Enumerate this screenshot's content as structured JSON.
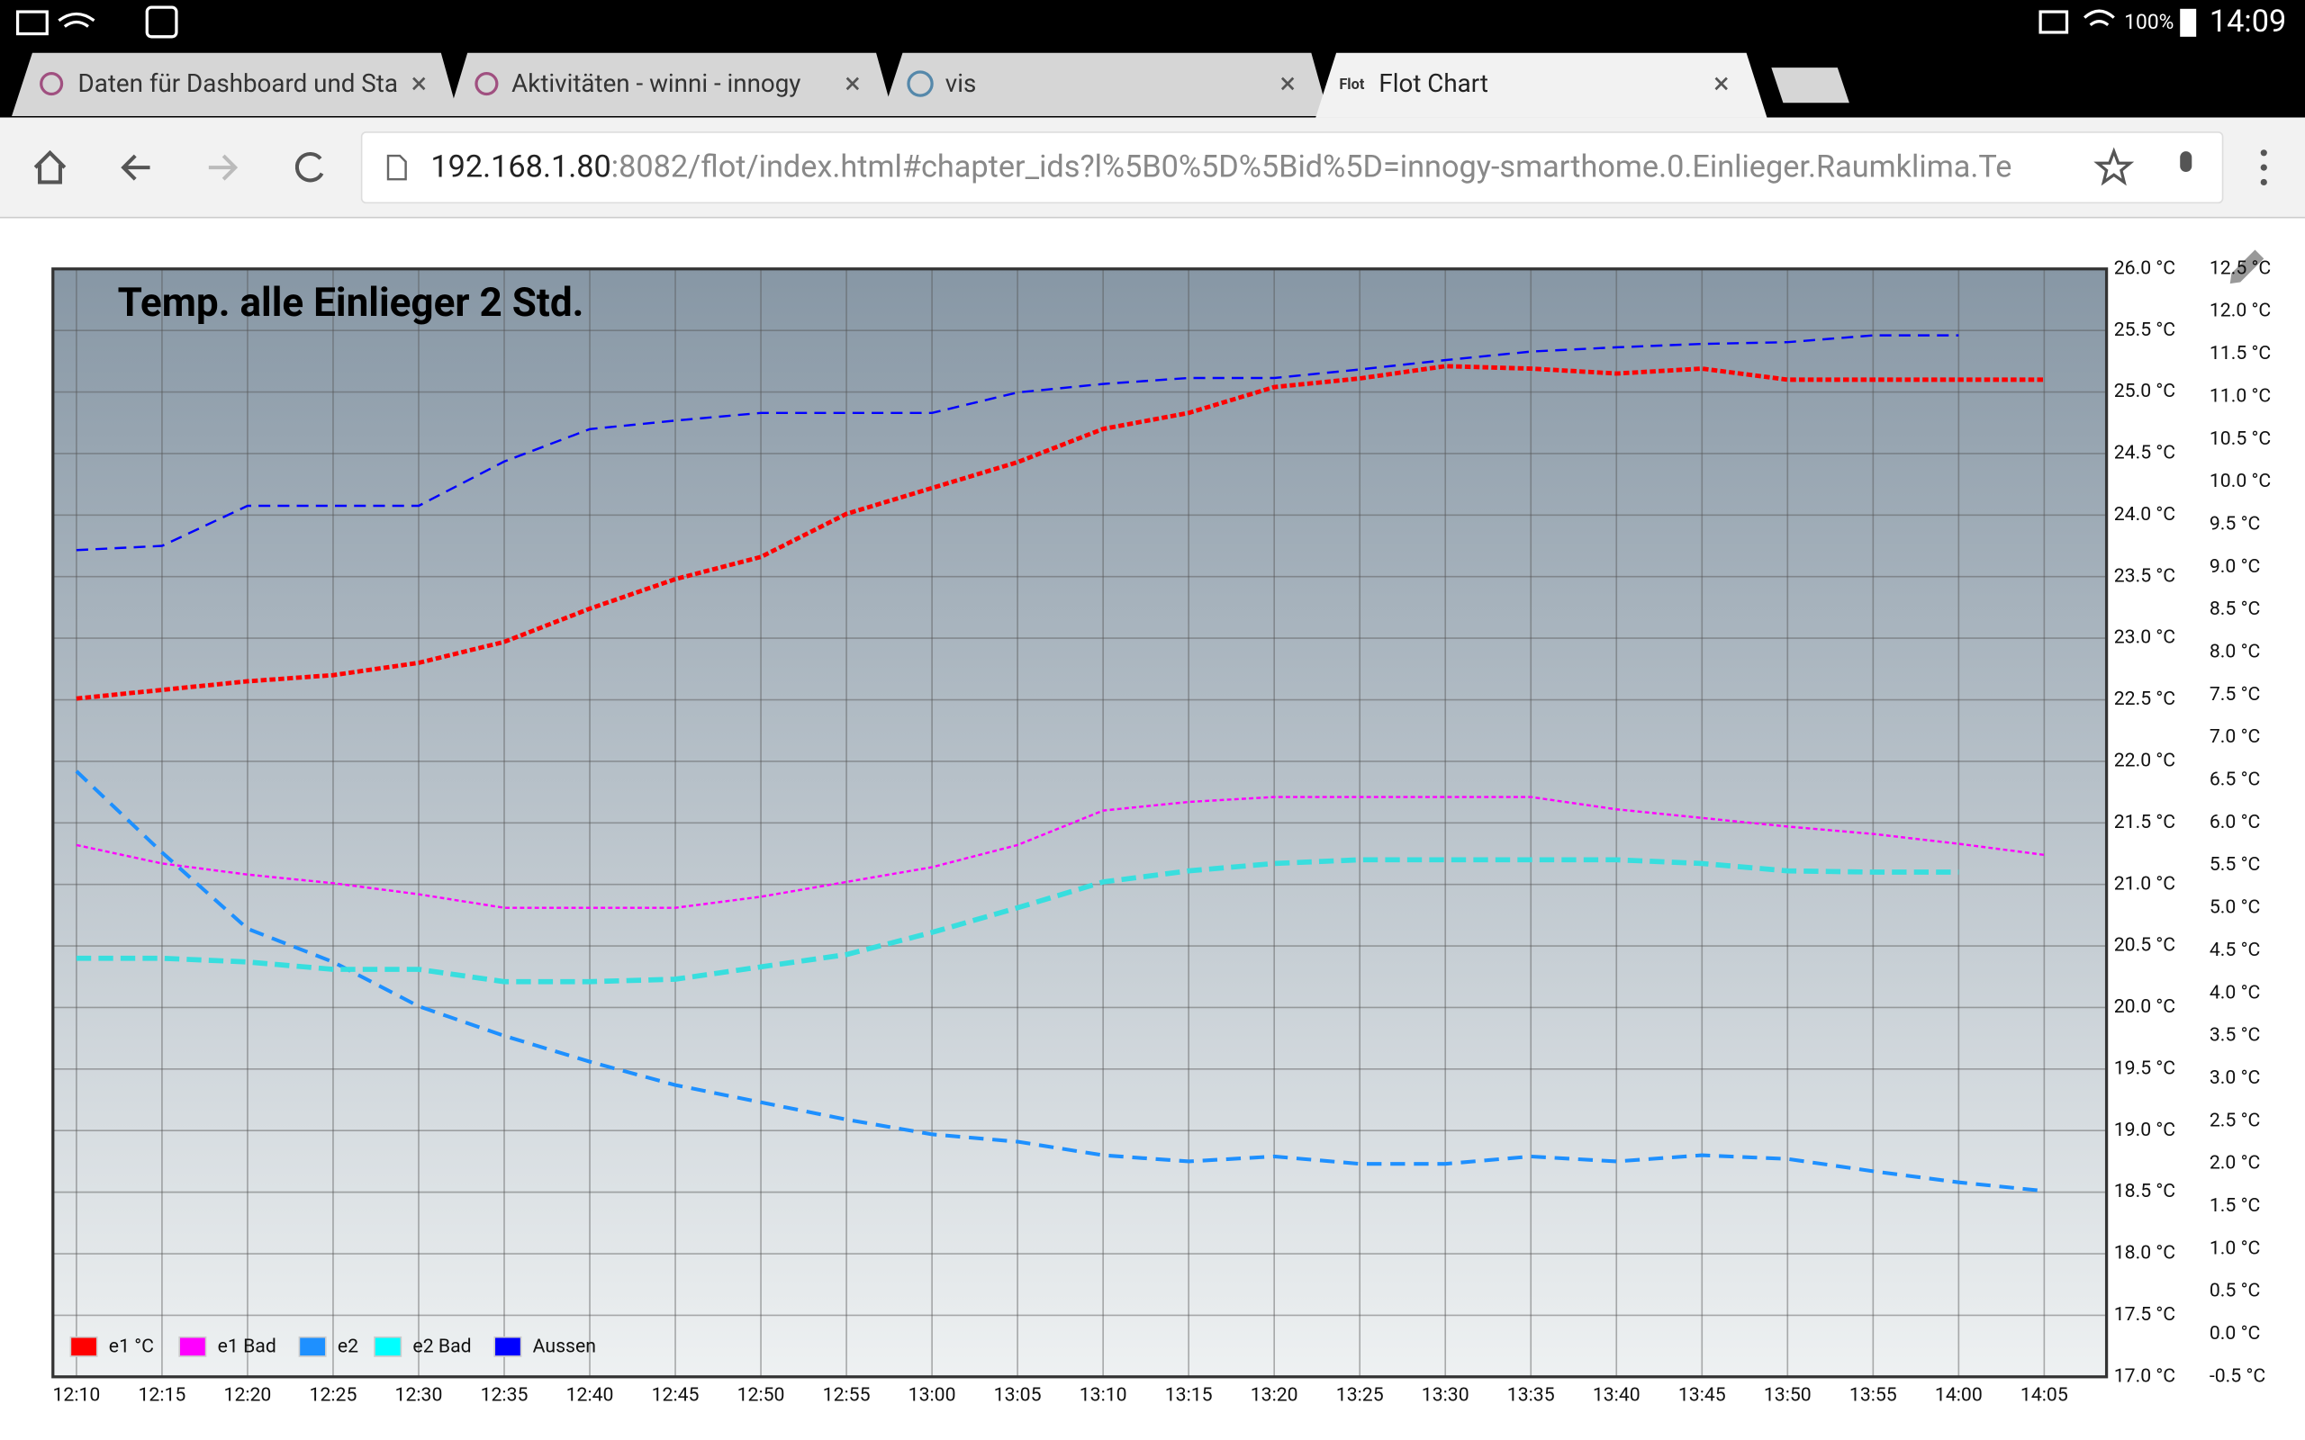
{
  "status_bar": {
    "battery": "100%",
    "time": "14:09"
  },
  "tabs": [
    {
      "title": "Daten für Dashboard und Sta"
    },
    {
      "title": "Aktivitäten - winni - innogy"
    },
    {
      "title": "vis"
    },
    {
      "favicon": "Flot",
      "title": "Flot Chart"
    }
  ],
  "address_bar": {
    "host": "192.168.1.80",
    "path": ":8082/flot/index.html#chapter_ids?l%5B0%5D%5Bid%5D=innogy-smarthome.0.Einlieger.Raumklima.Te"
  },
  "chart_data": {
    "type": "line",
    "title": "Temp. alle Einlieger 2 Std.",
    "categories": [
      "12:10",
      "12:15",
      "12:20",
      "12:25",
      "12:30",
      "12:35",
      "12:40",
      "12:45",
      "12:50",
      "12:55",
      "13:00",
      "13:05",
      "13:10",
      "13:15",
      "13:20",
      "13:25",
      "13:30",
      "13:35",
      "13:40",
      "13:45",
      "13:50",
      "13:55",
      "14:00",
      "14:05"
    ],
    "series": [
      {
        "name": "e1 °C",
        "color": "#ff0000",
        "values": [
          22.51,
          22.58,
          22.65,
          22.7,
          22.8,
          22.97,
          23.24,
          23.48,
          23.66,
          24.01,
          24.22,
          24.43,
          24.7,
          24.83,
          25.04,
          25.11,
          25.21,
          25.19,
          25.15,
          25.19,
          25.1,
          25.1,
          25.1,
          25.1
        ]
      },
      {
        "name": "e1 Bad",
        "color": "#ff00ff",
        "values": [
          21.32,
          21.17,
          21.08,
          21.01,
          20.92,
          20.81,
          20.81,
          20.81,
          20.9,
          21.02,
          21.14,
          21.32,
          21.6,
          21.67,
          21.71,
          21.71,
          21.71,
          21.71,
          21.61,
          21.54,
          21.47,
          21.41,
          21.33,
          21.24
        ]
      },
      {
        "name": "e2",
        "color": "#1e90ff",
        "values": [
          21.92,
          21.26,
          20.64,
          20.37,
          20.01,
          19.77,
          19.56,
          19.37,
          19.23,
          19.09,
          18.97,
          18.91,
          18.8,
          18.75,
          18.79,
          18.73,
          18.73,
          18.79,
          18.75,
          18.8,
          18.77,
          18.67,
          18.58,
          18.51
        ]
      },
      {
        "name": "e2 Bad",
        "color": "#00ffff",
        "values": [
          20.4,
          20.4,
          20.37,
          20.31,
          20.31,
          20.21,
          20.21,
          20.23,
          20.33,
          20.43,
          20.61,
          20.81,
          21.02,
          21.11,
          21.17,
          21.2,
          21.2,
          21.2,
          21.2,
          21.17,
          21.11,
          21.1,
          21.1,
          null
        ]
      },
      {
        "name": "Aussen",
        "color": "#0000ff",
        "axis": "y2",
        "values": [
          9.2,
          9.25,
          9.72,
          9.72,
          9.72,
          10.24,
          10.62,
          10.72,
          10.81,
          10.81,
          10.81,
          11.05,
          11.15,
          11.22,
          11.22,
          11.32,
          11.43,
          11.53,
          11.58,
          11.62,
          11.64,
          11.72,
          11.72,
          null
        ]
      }
    ],
    "ylim": [
      17,
      26
    ],
    "yticks": [
      {
        "value": 17,
        "label": "17.0 °C"
      },
      {
        "value": 17.5,
        "label": "17.5 °C"
      },
      {
        "value": 18,
        "label": "18.0 °C"
      },
      {
        "value": 18.5,
        "label": "18.5 °C"
      },
      {
        "value": 19,
        "label": "19.0 °C"
      },
      {
        "value": 19.5,
        "label": "19.5 °C"
      },
      {
        "value": 20,
        "label": "20.0 °C"
      },
      {
        "value": 20.5,
        "label": "20.5 °C"
      },
      {
        "value": 21,
        "label": "21.0 °C"
      },
      {
        "value": 21.5,
        "label": "21.5 °C"
      },
      {
        "value": 22,
        "label": "22.0 °C"
      },
      {
        "value": 22.5,
        "label": "22.5 °C"
      },
      {
        "value": 23,
        "label": "23.0 °C"
      },
      {
        "value": 23.5,
        "label": "23.5 °C"
      },
      {
        "value": 24,
        "label": "24.0 °C"
      },
      {
        "value": 24.5,
        "label": "24.5 °C"
      },
      {
        "value": 25,
        "label": "25.0 °C"
      },
      {
        "value": 25.5,
        "label": "25.5 °C"
      },
      {
        "value": 26,
        "label": "26.0 °C"
      }
    ],
    "y2lim": [
      -0.5,
      12.5
    ],
    "y2ticks": [
      {
        "value": -0.5,
        "label": "-0.5 °C"
      },
      {
        "value": 0,
        "label": "0.0 °C"
      },
      {
        "value": 0.5,
        "label": "0.5 °C"
      },
      {
        "value": 1,
        "label": "1.0 °C"
      },
      {
        "value": 1.5,
        "label": "1.5 °C"
      },
      {
        "value": 2,
        "label": "2.0 °C"
      },
      {
        "value": 2.5,
        "label": "2.5 °C"
      },
      {
        "value": 3,
        "label": "3.0 °C"
      },
      {
        "value": 3.5,
        "label": "3.5 °C"
      },
      {
        "value": 4,
        "label": "4.0 °C"
      },
      {
        "value": 4.5,
        "label": "4.5 °C"
      },
      {
        "value": 5,
        "label": "5.0 °C"
      },
      {
        "value": 5.5,
        "label": "5.5 °C"
      },
      {
        "value": 6,
        "label": "6.0 °C"
      },
      {
        "value": 6.5,
        "label": "6.5 °C"
      },
      {
        "value": 7,
        "label": "7.0 °C"
      },
      {
        "value": 7.5,
        "label": "7.5 °C"
      },
      {
        "value": 8,
        "label": "8.0 °C"
      },
      {
        "value": 8.5,
        "label": "8.5 °C"
      },
      {
        "value": 9,
        "label": "9.0 °C"
      },
      {
        "value": 9.5,
        "label": "9.5 °C"
      },
      {
        "value": 10,
        "label": "10.0 °C"
      },
      {
        "value": 10.5,
        "label": "10.5 °C"
      },
      {
        "value": 11,
        "label": "11.0 °C"
      },
      {
        "value": 11.5,
        "label": "11.5 °C"
      },
      {
        "value": 12,
        "label": "12.0 °C"
      },
      {
        "value": 12.5,
        "label": "12.5 °C"
      }
    ],
    "y2_color": "#0000cc",
    "grid": true,
    "legend": "lower left"
  }
}
